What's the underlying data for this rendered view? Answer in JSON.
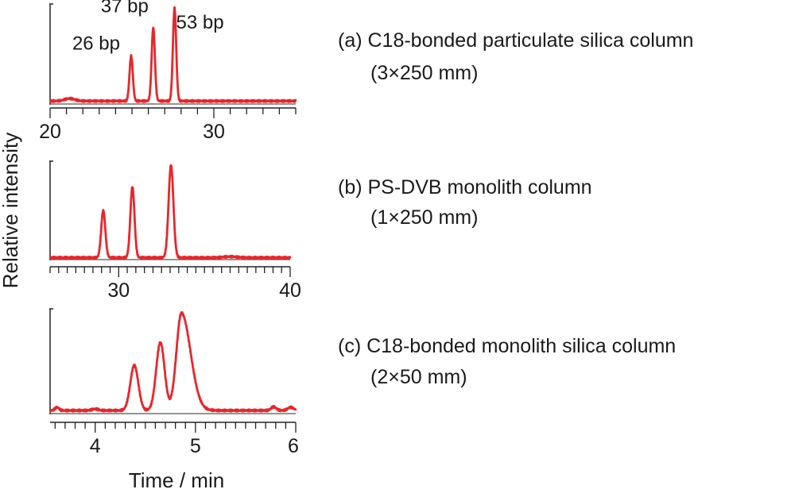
{
  "figure": {
    "ylabel": "Relative intensity",
    "xlabel": "Time / min"
  },
  "chart_data": [
    {
      "type": "line",
      "panel": "a",
      "caption": "(a) C18-bonded particulate silica column",
      "subcaption": "(3×250 mm)",
      "xlim": [
        20,
        35
      ],
      "x_major_ticks": [
        20,
        30
      ],
      "x_minor_step": 1,
      "ylim": [
        0,
        1
      ],
      "series": [
        {
          "name": "chromatogram",
          "color": "#e8262b",
          "baseline": 0.03,
          "wiggles": [
            [
              21.2,
              0.025,
              0.3
            ]
          ],
          "peaks": [
            {
              "x": 24.95,
              "height": 0.48,
              "width": 0.1,
              "label": "26 bp"
            },
            {
              "x": 26.3,
              "height": 0.76,
              "width": 0.1,
              "label": "37 bp"
            },
            {
              "x": 27.6,
              "height": 0.96,
              "width": 0.1,
              "label": "53 bp"
            }
          ]
        }
      ]
    },
    {
      "type": "line",
      "panel": "b",
      "caption": "(b) PS-DVB monolith column",
      "subcaption": "(1×250 mm)",
      "xlim": [
        26,
        40
      ],
      "x_major_ticks": [
        30,
        40
      ],
      "x_minor_step": 0.5,
      "ylim": [
        0,
        1
      ],
      "series": [
        {
          "name": "chromatogram",
          "color": "#e8262b",
          "baseline": 0.02,
          "wiggles": [
            [
              36.5,
              0.01,
              0.4
            ]
          ],
          "peaks": [
            {
              "x": 29.1,
              "height": 0.5,
              "width": 0.12
            },
            {
              "x": 30.8,
              "height": 0.74,
              "width": 0.12
            },
            {
              "x": 33.05,
              "height": 0.96,
              "width": 0.14
            }
          ]
        }
      ]
    },
    {
      "type": "line",
      "panel": "c",
      "caption": "(c) C18-bonded monolith silica column",
      "subcaption": "(2×50 mm)",
      "xlim": [
        3.55,
        6.0
      ],
      "x_major_ticks": [
        4,
        5,
        6
      ],
      "x_minor_step": 0.1,
      "ylim": [
        0,
        1
      ],
      "series": [
        {
          "name": "chromatogram",
          "color": "#e8262b",
          "baseline": 0.03,
          "wiggles": [
            [
              3.62,
              0.03,
              0.02
            ],
            [
              4.0,
              0.015,
              0.03
            ],
            [
              5.78,
              0.035,
              0.025
            ],
            [
              5.95,
              0.03,
              0.03
            ]
          ],
          "peaks": [
            {
              "x": 4.39,
              "height": 0.46,
              "width": 0.04
            },
            {
              "x": 4.65,
              "height": 0.68,
              "width": 0.042
            },
            {
              "x": 4.86,
              "height": 0.96,
              "width": 0.05,
              "tail": 0.09
            }
          ]
        }
      ]
    }
  ]
}
